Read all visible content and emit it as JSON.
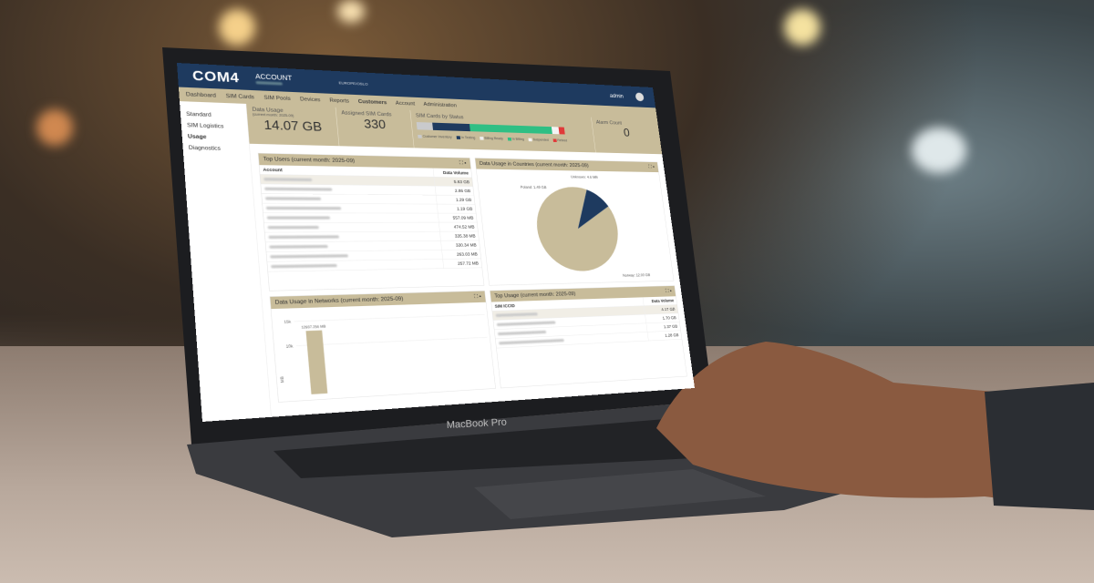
{
  "app": {
    "logo": "COM4",
    "account_label": "ACCOUNT",
    "timezone": "EUROPE/OSLO",
    "user": "admin",
    "device_label": "MacBook Pro"
  },
  "nav": [
    {
      "label": "Dashboard"
    },
    {
      "label": "SIM Cards"
    },
    {
      "label": "SIM Pools"
    },
    {
      "label": "Devices"
    },
    {
      "label": "Reports"
    },
    {
      "label": "Customers"
    },
    {
      "label": "Account"
    },
    {
      "label": "Administration"
    }
  ],
  "sidebar": [
    {
      "label": "Standard"
    },
    {
      "label": "SIM Logistics"
    },
    {
      "label": "Usage",
      "active": true
    },
    {
      "label": "Diagnostics"
    }
  ],
  "stats": {
    "data_usage_label": "Data Usage",
    "data_usage_sub": "(current month: 2025-09)",
    "data_usage_value": "14.07 GB",
    "assigned_label": "Assigned SIM Cards",
    "assigned_value": "330",
    "status_label": "SIM Cards by Status",
    "alarm_label": "Alarm Count",
    "alarm_value": "0"
  },
  "status_bar": [
    {
      "name": "Customer Inventory",
      "pct": 10,
      "color": "#c9cacc"
    },
    {
      "name": "In Testing",
      "pct": 24,
      "color": "#1e3a5f"
    },
    {
      "name": "Billing Ready",
      "pct": 0,
      "color": "#eeeeee"
    },
    {
      "name": "In Billing",
      "pct": 55,
      "color": "#2fbf84"
    },
    {
      "name": "Suspended",
      "pct": 5,
      "color": "#f4f4f4"
    },
    {
      "name": "Retired",
      "pct": 4,
      "color": "#e03a3a"
    }
  ],
  "top_users": {
    "title": "Top Users (current month: 2025-09)",
    "col_account": "Account",
    "col_volume": "Data Volume",
    "rows": [
      "5.63 GB",
      "2.86 GB",
      "1.29 GB",
      "1.19 GB",
      "557.09 MB",
      "474.52 MB",
      "335.38 MB",
      "330.34 MB",
      "263.03 MB",
      "257.72 MB"
    ]
  },
  "countries": {
    "title": "Data Usage in Countries (current month: 2025-09)"
  },
  "networks": {
    "title": "Data Usage in Networks (current month: 2025-09)"
  },
  "top_usage": {
    "title": "Top Usage (current month: 2025-09)",
    "col_iccid": "SIM ICCID",
    "col_volume": "Data Volume",
    "rows": [
      "4.17 GB",
      "1.70 GB",
      "1.37 GB",
      "1.28 GB"
    ]
  },
  "chart_data": [
    {
      "type": "pie",
      "slices": [
        {
          "name": "Norway",
          "label": "Norway: 12.93 GB",
          "value": 12.93
        },
        {
          "name": "Poland",
          "label": "Poland: 1.49 GB",
          "value": 1.49
        },
        {
          "name": "Unknown",
          "label": "Unknown: 4.6 MB",
          "value": 0.0046
        }
      ],
      "colors": [
        "#c8bc9a",
        "#1e3a5f",
        "#888888"
      ]
    },
    {
      "type": "bar",
      "values": [
        12937.256
      ],
      "data_labels": [
        "12937.256 MB"
      ],
      "ylabel": "MB",
      "yticks": [
        "15k",
        "10k"
      ],
      "ylim": [
        0,
        15000
      ]
    }
  ]
}
